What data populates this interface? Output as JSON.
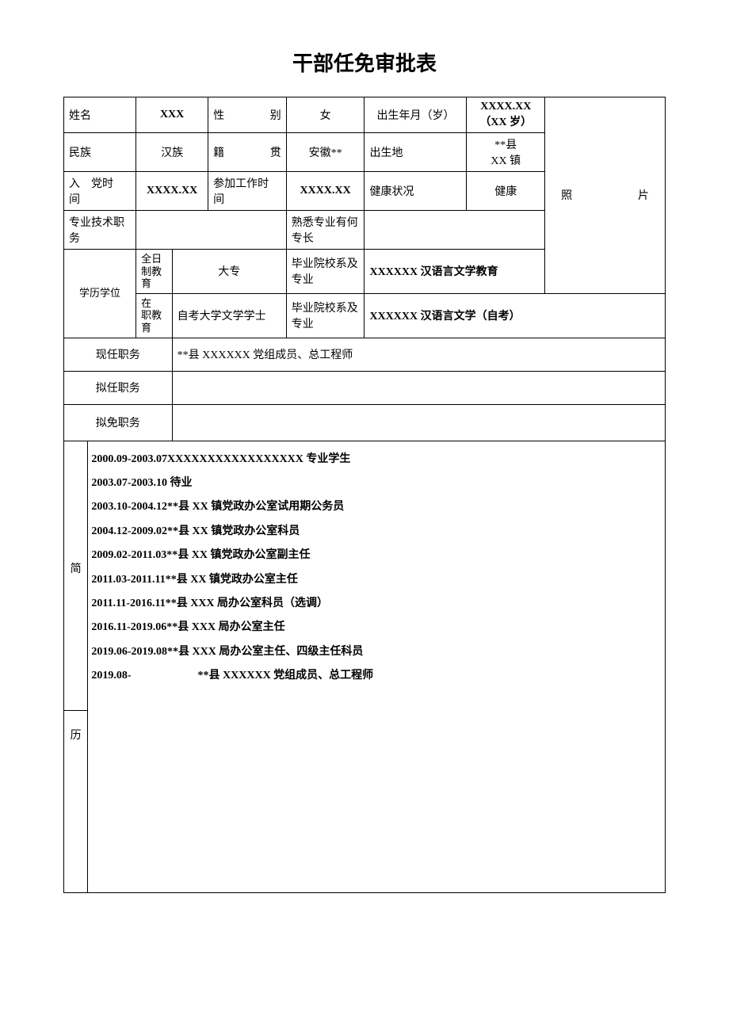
{
  "title": "干部任免审批表",
  "labels": {
    "name": "姓名",
    "gender": "性　　别",
    "birth": "出生年月（岁）",
    "ethnic": "民族",
    "native": "籍　　贯",
    "birthplace": "出生地",
    "party_time": "入　党时　间",
    "work_time": "参加工作时　　间",
    "health": "健康状况",
    "tech_title": "专业技术职务",
    "specialty": "熟悉专业有何专长",
    "edu_header": "学历学位",
    "fulltime_edu": "全日制教　　育",
    "grad_school": "毕业院校系及专业",
    "parttime_edu": "在　职教　育",
    "current_pos": "现任职务",
    "proposed_pos": "拟任职务",
    "dismissed_pos": "拟免职务",
    "resume_top": "简",
    "resume_bottom": "历",
    "photo": "照　　　片"
  },
  "values": {
    "name": "XXX",
    "gender": "女",
    "birth": "XXXX.XX（XX 岁）",
    "ethnic": "汉族",
    "native": "安徽**",
    "birthplace_line1": "**县",
    "birthplace_line2": "XX 镇",
    "party_time": "XXXX.XX",
    "work_time": "XXXX.XX",
    "health": "健康",
    "tech_title": "",
    "specialty": "",
    "fulltime_degree": "大专",
    "fulltime_school": "XXXXXX 汉语言文学教育",
    "parttime_degree": "自考大学文学学士",
    "parttime_school": "XXXXXX 汉语言文学（自考）",
    "current_pos": "**县 XXXXXX 党组成员、总工程师",
    "proposed_pos": "",
    "dismissed_pos": ""
  },
  "resume": [
    "2000.09-2003.07XXXXXXXXXXXXXXXXX 专业学生",
    "2003.07-2003.10 待业",
    "2003.10-2004.12**县 XX 镇党政办公室试用期公务员",
    "2004.12-2009.02**县 XX 镇党政办公室科员",
    "2009.02-2011.03**县 XX 镇党政办公室副主任",
    "2011.03-2011.11**县 XX 镇党政办公室主任",
    "2011.11-2016.11**县 XXX 局办公室科员（选调）",
    "2016.11-2019.06**县 XXX 局办公室主任",
    "2019.06-2019.08**县 XXX 局办公室主任、四级主任科员",
    "2019.08-　　　　　　**县 XXXXXX 党组成员、总工程师"
  ]
}
